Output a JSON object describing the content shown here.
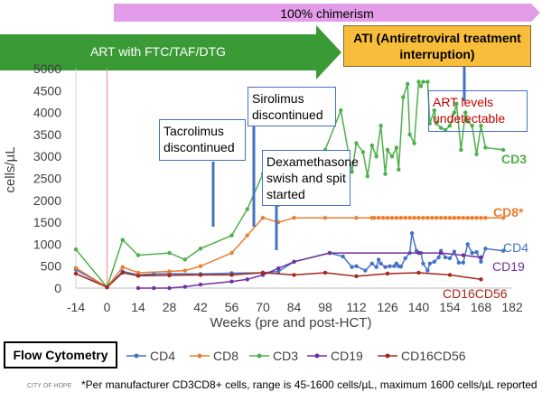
{
  "banner": {
    "chimerism": "100% chimerism",
    "art": "ART with FTC/TAF/DTG",
    "ati": "ATI (Antiretroviral treatment interruption)"
  },
  "notes": {
    "tacrolimus": "Tacrolimus discontinued",
    "sirolimus": "Sirolimus discontinued",
    "dexamethasone": "Dexamethasone swish and spit started",
    "art_levels": "ART levels undetectable"
  },
  "flow_cytometry_label": "Flow Cytometry",
  "footnote": "*Per manufacturer CD3CD8+ cells, range is 45-1600 cells/µL, maximum 1600 cells/µL reported",
  "footer_logo": "CITY OF HOPE",
  "colors": {
    "CD4": "#4472c4",
    "CD8": "#ed7d31",
    "CD3": "#4daf4a",
    "CD19": "#7030a0",
    "CD16CD56": "#a5261c",
    "art_arrow": "#3a9a35",
    "ati_box": "#f8bd3a",
    "chimerism_bar": "#e39ce8"
  },
  "chart_data": {
    "type": "line",
    "xlabel": "Weeks (pre and post-HCT)",
    "ylabel": "cells/µL",
    "xlim": [
      -14,
      182
    ],
    "ylim": [
      0,
      5000
    ],
    "x_ticks": [
      -14,
      0,
      14,
      28,
      42,
      56,
      70,
      84,
      98,
      112,
      126,
      140,
      154,
      168,
      182
    ],
    "y_ticks": [
      0,
      500,
      1000,
      1500,
      2000,
      2500,
      3000,
      3500,
      4000,
      4500,
      5000
    ],
    "series": [
      {
        "name": "CD4",
        "end_label": "CD4",
        "points": [
          [
            -14,
            420
          ],
          [
            0,
            20
          ],
          [
            7,
            380
          ],
          [
            14,
            300
          ],
          [
            21,
            320
          ],
          [
            28,
            330
          ],
          [
            42,
            320
          ],
          [
            56,
            340
          ],
          [
            70,
            350
          ],
          [
            77,
            380
          ],
          [
            84,
            600
          ],
          [
            100,
            800
          ],
          [
            106,
            720
          ],
          [
            110,
            480
          ],
          [
            112,
            500
          ],
          [
            116,
            400
          ],
          [
            119,
            560
          ],
          [
            121,
            480
          ],
          [
            122,
            650
          ],
          [
            123,
            560
          ],
          [
            125,
            480
          ],
          [
            127,
            500
          ],
          [
            129,
            500
          ],
          [
            130,
            560
          ],
          [
            131,
            500
          ],
          [
            132,
            490
          ],
          [
            134,
            680
          ],
          [
            136,
            800
          ],
          [
            137,
            1250
          ],
          [
            139,
            850
          ],
          [
            141,
            800
          ],
          [
            142,
            560
          ],
          [
            144,
            400
          ],
          [
            145,
            560
          ],
          [
            147,
            600
          ],
          [
            149,
            700
          ],
          [
            150,
            850
          ],
          [
            152,
            700
          ],
          [
            154,
            680
          ],
          [
            156,
            830
          ],
          [
            158,
            580
          ],
          [
            160,
            580
          ],
          [
            162,
            1000
          ],
          [
            164,
            800
          ],
          [
            166,
            820
          ],
          [
            168,
            600
          ],
          [
            170,
            900
          ],
          [
            178,
            850
          ]
        ]
      },
      {
        "name": "CD8",
        "end_label": "CD8*",
        "points": [
          [
            -14,
            460
          ],
          [
            0,
            20
          ],
          [
            7,
            480
          ],
          [
            14,
            350
          ],
          [
            28,
            380
          ],
          [
            35,
            400
          ],
          [
            42,
            500
          ],
          [
            56,
            800
          ],
          [
            63,
            1200
          ],
          [
            70,
            1600
          ],
          [
            77,
            1500
          ],
          [
            84,
            1600
          ],
          [
            98,
            1600
          ],
          [
            112,
            1600
          ],
          [
            119,
            1600
          ],
          [
            120,
            1600
          ],
          [
            122,
            1600
          ],
          [
            124,
            1600
          ],
          [
            126,
            1600
          ],
          [
            128,
            1600
          ],
          [
            130,
            1600
          ],
          [
            132,
            1600
          ],
          [
            134,
            1600
          ],
          [
            136,
            1600
          ],
          [
            138,
            1600
          ],
          [
            140,
            1600
          ],
          [
            142,
            1600
          ],
          [
            144,
            1600
          ],
          [
            146,
            1600
          ],
          [
            148,
            1600
          ],
          [
            150,
            1600
          ],
          [
            152,
            1600
          ],
          [
            154,
            1600
          ],
          [
            156,
            1600
          ],
          [
            158,
            1600
          ],
          [
            160,
            1600
          ],
          [
            162,
            1600
          ],
          [
            164,
            1600
          ],
          [
            166,
            1600
          ],
          [
            168,
            1600
          ],
          [
            170,
            1600
          ],
          [
            178,
            1600
          ]
        ]
      },
      {
        "name": "CD3",
        "end_label": "CD3",
        "points": [
          [
            -14,
            880
          ],
          [
            0,
            20
          ],
          [
            7,
            1100
          ],
          [
            14,
            750
          ],
          [
            28,
            800
          ],
          [
            35,
            650
          ],
          [
            42,
            900
          ],
          [
            56,
            1200
          ],
          [
            63,
            1800
          ],
          [
            70,
            2600
          ],
          [
            77,
            1900
          ],
          [
            84,
            2300
          ],
          [
            98,
            3150
          ],
          [
            105,
            4050
          ],
          [
            110,
            2650
          ],
          [
            112,
            3300
          ],
          [
            115,
            3100
          ],
          [
            117,
            2550
          ],
          [
            119,
            3250
          ],
          [
            121,
            3000
          ],
          [
            123,
            3700
          ],
          [
            125,
            2600
          ],
          [
            126,
            3150
          ],
          [
            128,
            3000
          ],
          [
            130,
            3200
          ],
          [
            131,
            2700
          ],
          [
            133,
            4350
          ],
          [
            135,
            4650
          ],
          [
            136,
            3500
          ],
          [
            138,
            3300
          ],
          [
            140,
            4700
          ],
          [
            141,
            4600
          ],
          [
            142,
            4700
          ],
          [
            144,
            4700
          ],
          [
            145,
            3750
          ],
          [
            147,
            4050
          ],
          [
            148,
            3750
          ],
          [
            150,
            3650
          ],
          [
            152,
            3600
          ],
          [
            154,
            3700
          ],
          [
            156,
            4000
          ],
          [
            157,
            4200
          ],
          [
            159,
            3150
          ],
          [
            161,
            4000
          ],
          [
            162,
            3800
          ],
          [
            164,
            3700
          ],
          [
            166,
            3050
          ],
          [
            168,
            3700
          ],
          [
            170,
            3200
          ],
          [
            178,
            3150
          ]
        ]
      },
      {
        "name": "CD19",
        "end_label": "CD19",
        "points": [
          [
            14,
            0
          ],
          [
            21,
            0
          ],
          [
            28,
            0
          ],
          [
            35,
            30
          ],
          [
            42,
            80
          ],
          [
            56,
            150
          ],
          [
            63,
            200
          ],
          [
            70,
            300
          ],
          [
            77,
            450
          ],
          [
            84,
            600
          ],
          [
            100,
            800
          ],
          [
            140,
            800
          ],
          [
            150,
            800
          ],
          [
            160,
            750
          ],
          [
            168,
            700
          ]
        ]
      },
      {
        "name": "CD16CD56",
        "end_label": "CD16CD56",
        "points": [
          [
            -14,
            330
          ],
          [
            0,
            20
          ],
          [
            7,
            350
          ],
          [
            14,
            280
          ],
          [
            28,
            290
          ],
          [
            42,
            300
          ],
          [
            56,
            300
          ],
          [
            70,
            350
          ],
          [
            84,
            300
          ],
          [
            98,
            350
          ],
          [
            112,
            270
          ],
          [
            126,
            330
          ],
          [
            140,
            350
          ],
          [
            154,
            300
          ],
          [
            168,
            200
          ]
        ]
      }
    ],
    "legend": {
      "placement": "bottom",
      "entries": [
        "CD4",
        "CD8",
        "CD3",
        "CD19",
        "CD16CD56"
      ]
    },
    "grid": false
  }
}
